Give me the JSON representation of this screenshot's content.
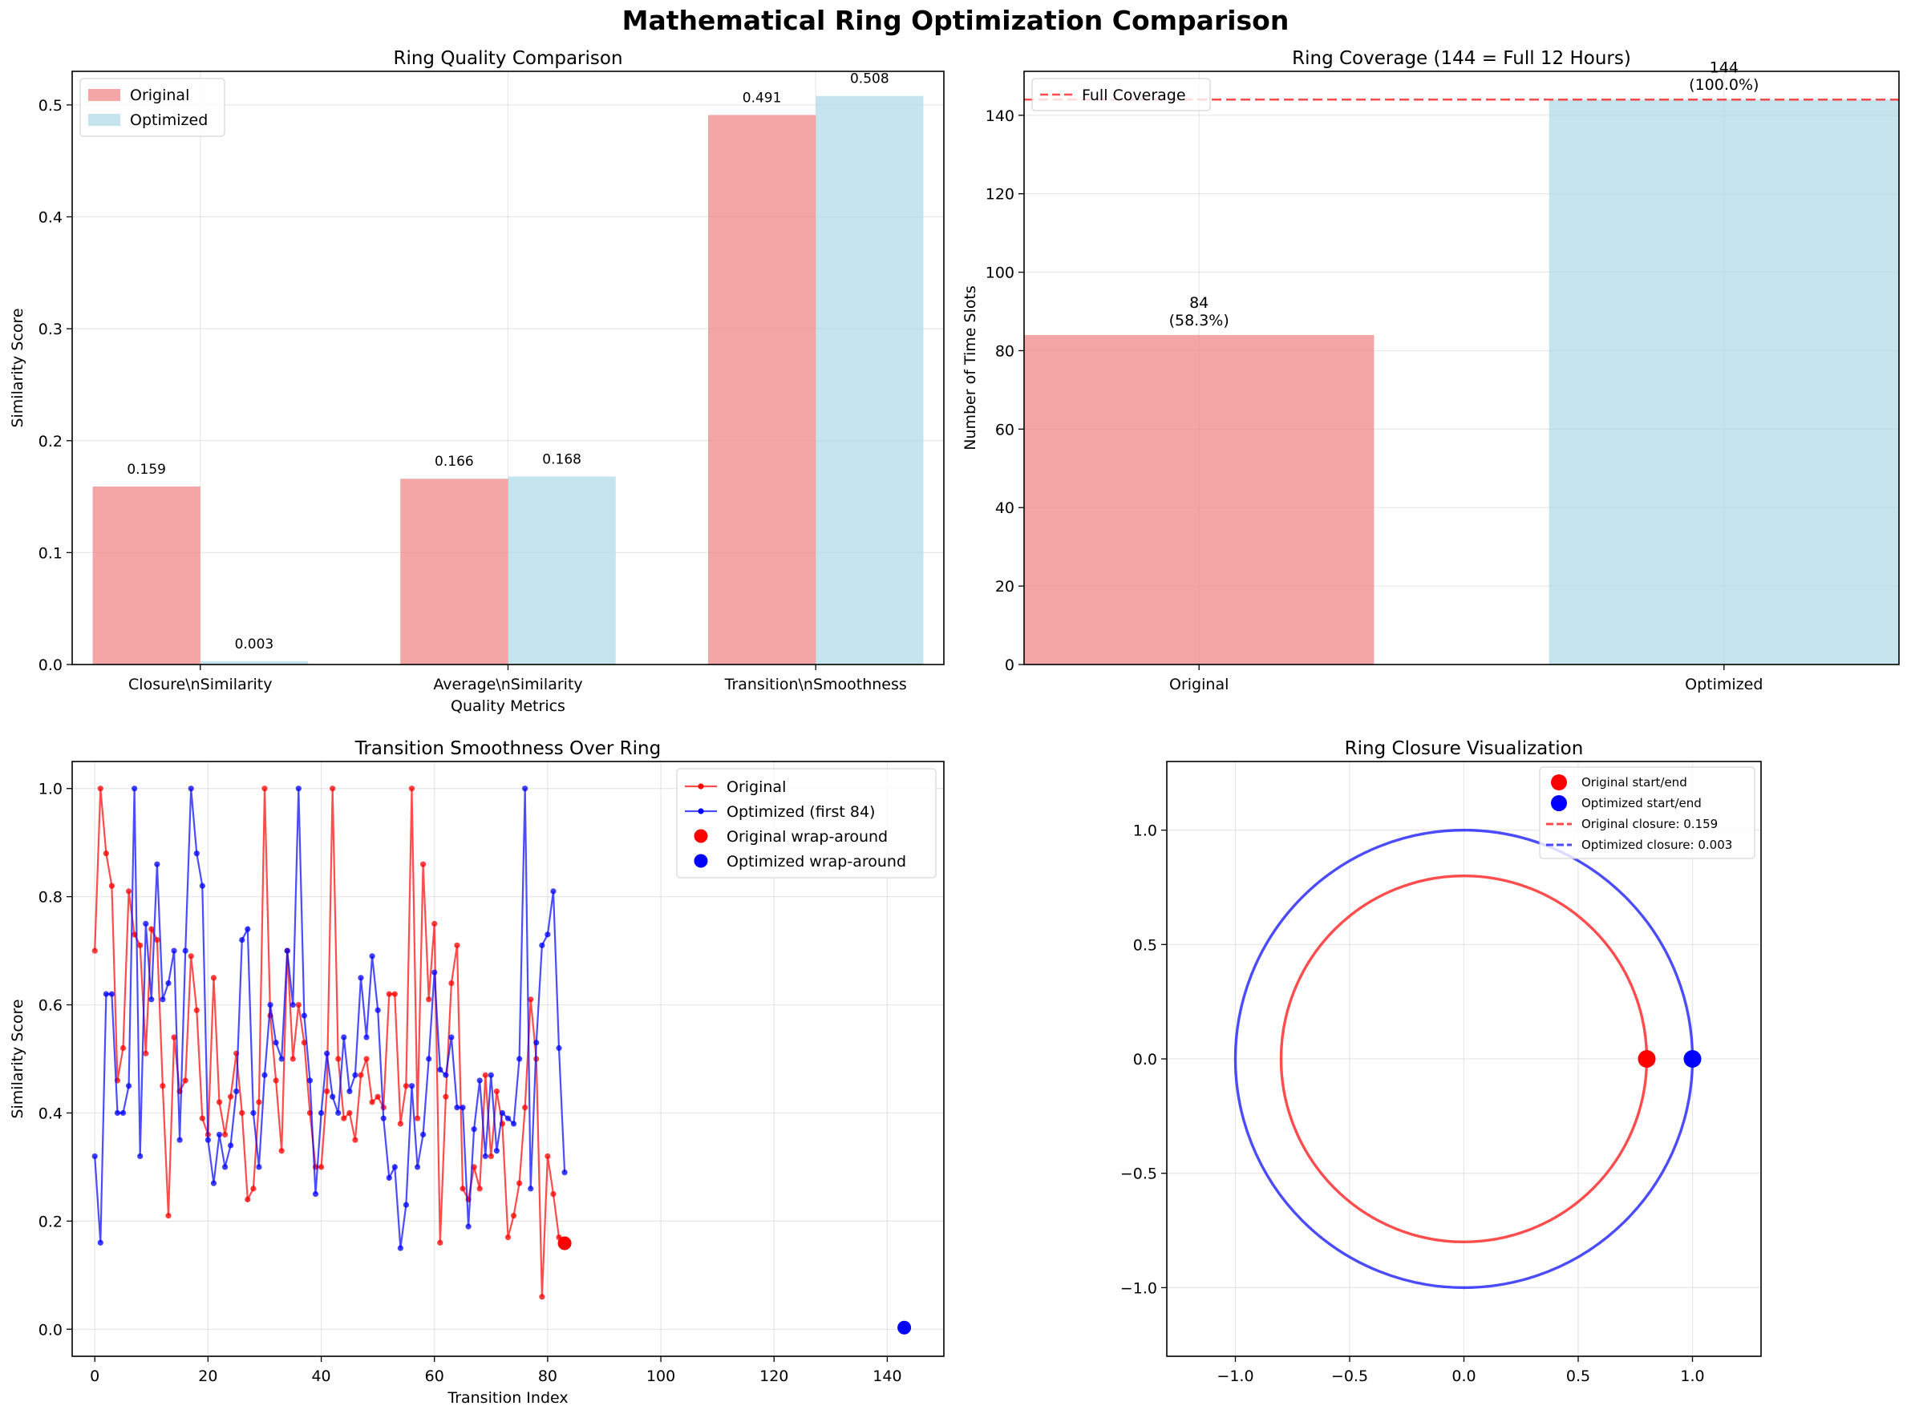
{
  "suptitle": "Mathematical Ring Optimization Comparison",
  "colors": {
    "original_bar": "#f08080",
    "optimized_bar": "#add8e6",
    "original_line": "#ff0000",
    "optimized_line": "#0000ff",
    "full_coverage_line": "#ff0000"
  },
  "chart_data": [
    {
      "type": "bar",
      "title": "Ring Quality Comparison",
      "xlabel": "Quality Metrics",
      "ylabel": "Similarity Score",
      "categories": [
        "Closure\\nSimilarity",
        "Average\\nSimilarity",
        "Transition\\nSmoothness"
      ],
      "series": [
        {
          "name": "Original",
          "values": [
            0.159,
            0.166,
            0.491
          ],
          "labels": [
            "0.159",
            "0.166",
            "0.491"
          ]
        },
        {
          "name": "Optimized",
          "values": [
            0.003,
            0.168,
            0.508
          ],
          "labels": [
            "0.003",
            "0.168",
            "0.508"
          ]
        }
      ],
      "ylim": [
        0,
        0.53
      ],
      "yticks": [
        0.0,
        0.1,
        0.2,
        0.3,
        0.4,
        0.5
      ],
      "ytick_labels": [
        "0.0",
        "0.1",
        "0.2",
        "0.3",
        "0.4",
        "0.5"
      ],
      "legend": "upper-left",
      "grid": true
    },
    {
      "type": "bar",
      "title": "Ring Coverage (144 = Full 12 Hours)",
      "xlabel": "",
      "ylabel": "Number of Time Slots",
      "categories": [
        "Original",
        "Optimized"
      ],
      "values": [
        84,
        144
      ],
      "labels": [
        "84\n(58.3%)",
        "144\n(100.0%)"
      ],
      "reference_line": {
        "name": "Full Coverage",
        "y": 144
      },
      "ylim": [
        0,
        151.2
      ],
      "yticks": [
        0,
        20,
        40,
        60,
        80,
        100,
        120,
        140
      ],
      "ytick_labels": [
        "0",
        "20",
        "40",
        "60",
        "80",
        "100",
        "120",
        "140"
      ],
      "legend": "upper-left",
      "grid": true
    },
    {
      "type": "line",
      "title": "Transition Smoothness Over Ring",
      "xlabel": "Transition Index",
      "ylabel": "Similarity Score",
      "series": [
        {
          "name": "Original",
          "x_start": 0,
          "values": [
            0.7,
            1.0,
            0.88,
            0.82,
            0.46,
            0.52,
            0.81,
            0.73,
            0.71,
            0.51,
            0.74,
            0.72,
            0.45,
            0.21,
            0.54,
            0.44,
            0.46,
            0.69,
            0.59,
            0.39,
            0.36,
            0.65,
            0.42,
            0.36,
            0.43,
            0.51,
            0.4,
            0.24,
            0.26,
            0.42,
            1.0,
            0.58,
            0.46,
            0.33,
            0.7,
            0.5,
            0.6,
            0.53,
            0.4,
            0.3,
            0.3,
            0.44,
            1.0,
            0.5,
            0.39,
            0.4,
            0.35,
            0.47,
            0.5,
            0.42,
            0.43,
            0.41,
            0.62,
            0.62,
            0.38,
            0.45,
            1.0,
            0.39,
            0.86,
            0.61,
            0.75,
            0.16,
            0.43,
            0.64,
            0.71,
            0.26,
            0.24,
            0.3,
            0.26,
            0.47,
            0.32,
            0.44,
            0.38,
            0.17,
            0.21,
            0.27,
            0.41,
            0.61,
            0.5,
            0.06,
            0.32,
            0.25,
            0.17,
            0.16
          ]
        },
        {
          "name": "Optimized (first 84)",
          "x_start": 0,
          "values": [
            0.32,
            0.16,
            0.62,
            0.62,
            0.4,
            0.4,
            0.45,
            1.0,
            0.32,
            0.75,
            0.61,
            0.86,
            0.61,
            0.64,
            0.7,
            0.35,
            0.7,
            1.0,
            0.88,
            0.82,
            0.35,
            0.27,
            0.36,
            0.3,
            0.34,
            0.44,
            0.72,
            0.74,
            0.4,
            0.3,
            0.47,
            0.6,
            0.53,
            0.5,
            0.7,
            0.6,
            1.0,
            0.58,
            0.46,
            0.25,
            0.4,
            0.51,
            0.43,
            0.4,
            0.54,
            0.44,
            0.47,
            0.65,
            0.54,
            0.69,
            0.59,
            0.39,
            0.28,
            0.3,
            0.15,
            0.23,
            0.45,
            0.3,
            0.36,
            0.5,
            0.66,
            0.48,
            0.47,
            0.54,
            0.41,
            0.41,
            0.19,
            0.37,
            0.46,
            0.32,
            0.47,
            0.33,
            0.4,
            0.39,
            0.38,
            0.5,
            1.0,
            0.26,
            0.53,
            0.71,
            0.73,
            0.81,
            0.52,
            0.29
          ]
        },
        {
          "name": "Original wrap-around",
          "x": [
            83
          ],
          "values": [
            0.159
          ]
        },
        {
          "name": "Optimized wrap-around",
          "x": [
            143
          ],
          "values": [
            0.003
          ]
        }
      ],
      "xlim": [
        -4,
        150
      ],
      "ylim": [
        -0.05,
        1.05
      ],
      "xticks": [
        0,
        20,
        40,
        60,
        80,
        100,
        120,
        140
      ],
      "xtick_labels": [
        "0",
        "20",
        "40",
        "60",
        "80",
        "100",
        "120",
        "140"
      ],
      "yticks": [
        0.0,
        0.2,
        0.4,
        0.6,
        0.8,
        1.0
      ],
      "ytick_labels": [
        "0.0",
        "0.2",
        "0.4",
        "0.6",
        "0.8",
        "1.0"
      ],
      "legend": "upper-right",
      "grid": true
    },
    {
      "type": "line",
      "title": "Ring Closure Visualization",
      "series": [
        {
          "name": "Original start/end",
          "x": [
            0.8
          ],
          "values": [
            0.0
          ]
        },
        {
          "name": "Optimized start/end",
          "x": [
            1.0
          ],
          "values": [
            0.0
          ]
        },
        {
          "name": "Original closure: 0.159",
          "radius": 0.8
        },
        {
          "name": "Optimized closure: 0.003",
          "radius": 1.0
        }
      ],
      "xlim": [
        -1.3,
        1.3
      ],
      "ylim": [
        -1.3,
        1.3
      ],
      "xticks": [
        -1.0,
        -0.5,
        0.0,
        0.5,
        1.0
      ],
      "xtick_labels": [
        "−1.0",
        "−0.5",
        "0.0",
        "0.5",
        "1.0"
      ],
      "yticks": [
        -1.0,
        -0.5,
        0.0,
        0.5,
        1.0
      ],
      "ytick_labels": [
        "−1.0",
        "−0.5",
        "0.0",
        "0.5",
        "1.0"
      ],
      "legend": "upper-right",
      "grid": true
    }
  ]
}
